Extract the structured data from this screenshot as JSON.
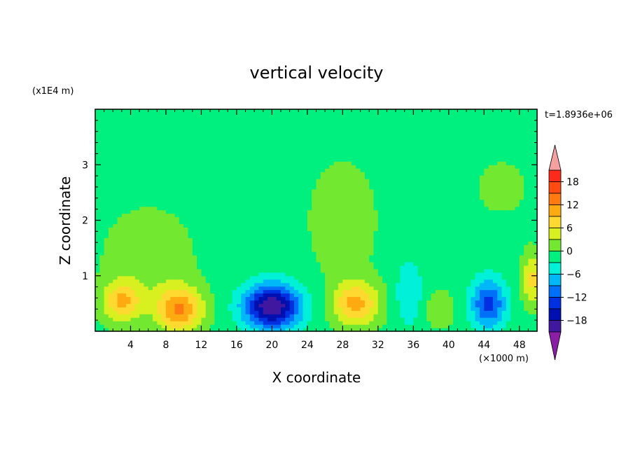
{
  "chart_data": {
    "type": "heatmap",
    "title": "vertical velocity",
    "xlabel": "X coordinate",
    "ylabel": "Z coordinate",
    "x_unit": "(×1000 m)",
    "y_unit": "(x1E4 m)",
    "time_label": "t=1.8936e+06",
    "xlim": [
      0,
      50
    ],
    "ylim": [
      0,
      4
    ],
    "x_ticks": [
      4,
      8,
      12,
      16,
      20,
      24,
      28,
      32,
      36,
      40,
      44,
      48
    ],
    "y_ticks": [
      1,
      2,
      3
    ],
    "colorbar": {
      "range": [
        -21,
        21
      ],
      "tick_values": [
        18,
        12,
        6,
        0,
        -6,
        -12,
        -18
      ],
      "tick_labels": [
        "18",
        "12",
        "6",
        "0",
        "−6",
        "−12",
        "−18"
      ],
      "over_color": "#f4a0a0",
      "under_color": "#8a1fa6",
      "levels": [
        {
          "from": 18,
          "to": 21,
          "color": "#ff2a1a"
        },
        {
          "from": 15,
          "to": 18,
          "color": "#ff4a10"
        },
        {
          "from": 12,
          "to": 15,
          "color": "#ff7a10"
        },
        {
          "from": 9,
          "to": 12,
          "color": "#ffaa10"
        },
        {
          "from": 6,
          "to": 9,
          "color": "#ffd830"
        },
        {
          "from": 3,
          "to": 6,
          "color": "#d8f020"
        },
        {
          "from": 0,
          "to": 3,
          "color": "#72e830"
        },
        {
          "from": -3,
          "to": 0,
          "color": "#00f080"
        },
        {
          "from": -6,
          "to": -3,
          "color": "#00f0d8"
        },
        {
          "from": -9,
          "to": -6,
          "color": "#00b8f8"
        },
        {
          "from": -12,
          "to": -9,
          "color": "#0070f8"
        },
        {
          "from": -15,
          "to": -12,
          "color": "#0030e0"
        },
        {
          "from": -18,
          "to": -15,
          "color": "#0010b0"
        },
        {
          "from": -21,
          "to": -18,
          "color": "#4018a0"
        }
      ]
    },
    "background_value": -1,
    "features": [
      {
        "kind": "positive",
        "x": 3,
        "z": 0.55,
        "amplitude": 10,
        "sx": 2.2,
        "sz": 0.35
      },
      {
        "kind": "positive",
        "x": 9.5,
        "z": 0.4,
        "amplitude": 13,
        "sx": 2.6,
        "sz": 0.4
      },
      {
        "kind": "negative",
        "x": 20,
        "z": 0.45,
        "amplitude": -20,
        "sx": 3.2,
        "sz": 0.4
      },
      {
        "kind": "positive",
        "x": 29.5,
        "z": 0.5,
        "amplitude": 11,
        "sx": 2.6,
        "sz": 0.4
      },
      {
        "kind": "negative",
        "x": 35.5,
        "z": 0.7,
        "amplitude": -5,
        "sx": 1.5,
        "sz": 0.6
      },
      {
        "kind": "positive",
        "x": 39,
        "z": 0.4,
        "amplitude": 4,
        "sx": 1.6,
        "sz": 0.3
      },
      {
        "kind": "negative",
        "x": 44.5,
        "z": 0.5,
        "amplitude": -12,
        "sx": 2.0,
        "sz": 0.45
      },
      {
        "kind": "positive",
        "x": 49.5,
        "z": 0.95,
        "amplitude": 8,
        "sx": 1.2,
        "sz": 0.45
      },
      {
        "kind": "positive",
        "x": 6,
        "z": 1.3,
        "amplitude": 3,
        "sx": 5.0,
        "sz": 0.9
      },
      {
        "kind": "positive",
        "x": 28,
        "z": 2.0,
        "amplitude": 2.5,
        "sx": 4.0,
        "sz": 1.1
      },
      {
        "kind": "positive",
        "x": 46,
        "z": 2.6,
        "amplitude": 2.2,
        "sx": 3.0,
        "sz": 0.5
      }
    ]
  }
}
